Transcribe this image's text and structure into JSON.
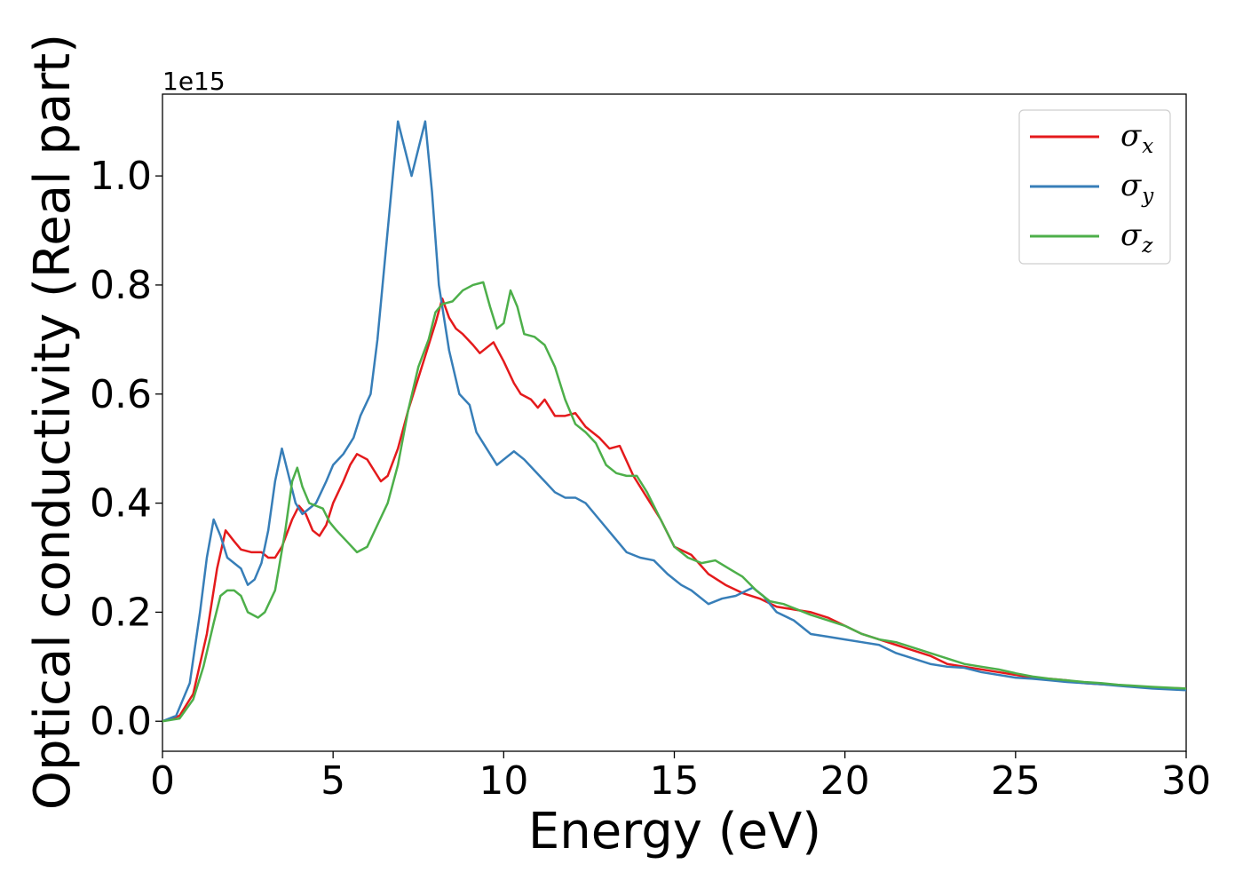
{
  "chart_data": {
    "type": "line",
    "xlabel": "Energy (eV)",
    "ylabel": "Optical conductivity (Real part)",
    "y_offset_text": "1e15",
    "xlim": [
      0,
      30
    ],
    "ylim": [
      -0.055,
      1.15
    ],
    "x_ticks": [
      0,
      5,
      10,
      15,
      20,
      25,
      30
    ],
    "x_tick_labels": [
      "0",
      "5",
      "10",
      "15",
      "20",
      "25",
      "30"
    ],
    "y_ticks": [
      0.0,
      0.2,
      0.4,
      0.6,
      0.8,
      1.0
    ],
    "y_tick_labels": [
      "0.0",
      "0.2",
      "0.4",
      "0.6",
      "0.8",
      "1.0"
    ],
    "grid": false,
    "legend_position": "top-right",
    "series": [
      {
        "name": "σx",
        "symbol": "σ",
        "subscript": "x",
        "color": "#e41a1c",
        "points": [
          [
            0,
            0
          ],
          [
            0.5,
            0.01
          ],
          [
            0.9,
            0.05
          ],
          [
            1.3,
            0.16
          ],
          [
            1.6,
            0.28
          ],
          [
            1.85,
            0.35
          ],
          [
            2.1,
            0.33
          ],
          [
            2.3,
            0.315
          ],
          [
            2.6,
            0.31
          ],
          [
            2.9,
            0.31
          ],
          [
            3.1,
            0.3
          ],
          [
            3.3,
            0.3
          ],
          [
            3.5,
            0.32
          ],
          [
            3.8,
            0.37
          ],
          [
            4.0,
            0.395
          ],
          [
            4.2,
            0.38
          ],
          [
            4.4,
            0.35
          ],
          [
            4.6,
            0.34
          ],
          [
            4.8,
            0.36
          ],
          [
            5.0,
            0.4
          ],
          [
            5.3,
            0.44
          ],
          [
            5.5,
            0.47
          ],
          [
            5.7,
            0.49
          ],
          [
            6.0,
            0.48
          ],
          [
            6.2,
            0.46
          ],
          [
            6.4,
            0.44
          ],
          [
            6.6,
            0.45
          ],
          [
            6.9,
            0.5
          ],
          [
            7.2,
            0.57
          ],
          [
            7.5,
            0.63
          ],
          [
            7.8,
            0.69
          ],
          [
            8.0,
            0.73
          ],
          [
            8.2,
            0.775
          ],
          [
            8.4,
            0.74
          ],
          [
            8.6,
            0.72
          ],
          [
            8.8,
            0.71
          ],
          [
            9.1,
            0.69
          ],
          [
            9.3,
            0.675
          ],
          [
            9.5,
            0.685
          ],
          [
            9.7,
            0.695
          ],
          [
            10.0,
            0.66
          ],
          [
            10.3,
            0.62
          ],
          [
            10.5,
            0.6
          ],
          [
            10.8,
            0.59
          ],
          [
            11.0,
            0.575
          ],
          [
            11.2,
            0.59
          ],
          [
            11.5,
            0.56
          ],
          [
            11.8,
            0.56
          ],
          [
            12.1,
            0.565
          ],
          [
            12.4,
            0.54
          ],
          [
            12.8,
            0.52
          ],
          [
            13.1,
            0.5
          ],
          [
            13.4,
            0.505
          ],
          [
            13.8,
            0.45
          ],
          [
            14.2,
            0.41
          ],
          [
            14.6,
            0.37
          ],
          [
            15.0,
            0.32
          ],
          [
            15.5,
            0.305
          ],
          [
            16.0,
            0.27
          ],
          [
            16.5,
            0.25
          ],
          [
            17.0,
            0.235
          ],
          [
            17.5,
            0.225
          ],
          [
            18.0,
            0.21
          ],
          [
            18.5,
            0.205
          ],
          [
            19.0,
            0.2
          ],
          [
            19.5,
            0.19
          ],
          [
            20.0,
            0.175
          ],
          [
            20.5,
            0.16
          ],
          [
            21.0,
            0.15
          ],
          [
            21.5,
            0.14
          ],
          [
            22.0,
            0.13
          ],
          [
            22.5,
            0.12
          ],
          [
            23.0,
            0.105
          ],
          [
            23.5,
            0.1
          ],
          [
            24.0,
            0.095
          ],
          [
            24.5,
            0.09
          ],
          [
            25.0,
            0.085
          ],
          [
            25.5,
            0.08
          ],
          [
            26.0,
            0.078
          ],
          [
            26.5,
            0.075
          ],
          [
            27.0,
            0.07
          ],
          [
            27.5,
            0.068
          ],
          [
            28.0,
            0.066
          ],
          [
            29.0,
            0.062
          ],
          [
            30.0,
            0.06
          ]
        ]
      },
      {
        "name": "σy",
        "symbol": "σ",
        "subscript": "y",
        "color": "#377eb8",
        "points": [
          [
            0,
            0
          ],
          [
            0.4,
            0.01
          ],
          [
            0.8,
            0.07
          ],
          [
            1.1,
            0.2
          ],
          [
            1.3,
            0.3
          ],
          [
            1.5,
            0.37
          ],
          [
            1.7,
            0.34
          ],
          [
            1.9,
            0.3
          ],
          [
            2.1,
            0.29
          ],
          [
            2.3,
            0.28
          ],
          [
            2.5,
            0.25
          ],
          [
            2.7,
            0.26
          ],
          [
            2.9,
            0.29
          ],
          [
            3.1,
            0.35
          ],
          [
            3.3,
            0.44
          ],
          [
            3.5,
            0.5
          ],
          [
            3.7,
            0.45
          ],
          [
            3.9,
            0.4
          ],
          [
            4.1,
            0.38
          ],
          [
            4.3,
            0.39
          ],
          [
            4.5,
            0.4
          ],
          [
            4.8,
            0.44
          ],
          [
            5.0,
            0.47
          ],
          [
            5.3,
            0.49
          ],
          [
            5.6,
            0.52
          ],
          [
            5.8,
            0.56
          ],
          [
            6.1,
            0.6
          ],
          [
            6.3,
            0.7
          ],
          [
            6.6,
            0.9
          ],
          [
            6.9,
            1.1
          ],
          [
            7.1,
            1.05
          ],
          [
            7.3,
            1.0
          ],
          [
            7.5,
            1.05
          ],
          [
            7.7,
            1.1
          ],
          [
            7.9,
            0.97
          ],
          [
            8.1,
            0.8
          ],
          [
            8.4,
            0.68
          ],
          [
            8.7,
            0.6
          ],
          [
            9.0,
            0.58
          ],
          [
            9.2,
            0.53
          ],
          [
            9.5,
            0.5
          ],
          [
            9.8,
            0.47
          ],
          [
            10.0,
            0.48
          ],
          [
            10.3,
            0.495
          ],
          [
            10.6,
            0.48
          ],
          [
            10.9,
            0.46
          ],
          [
            11.2,
            0.44
          ],
          [
            11.5,
            0.42
          ],
          [
            11.8,
            0.41
          ],
          [
            12.1,
            0.41
          ],
          [
            12.4,
            0.4
          ],
          [
            12.8,
            0.37
          ],
          [
            13.2,
            0.34
          ],
          [
            13.6,
            0.31
          ],
          [
            14.0,
            0.3
          ],
          [
            14.4,
            0.295
          ],
          [
            14.8,
            0.27
          ],
          [
            15.2,
            0.25
          ],
          [
            15.5,
            0.24
          ],
          [
            16.0,
            0.215
          ],
          [
            16.4,
            0.225
          ],
          [
            16.8,
            0.23
          ],
          [
            17.3,
            0.245
          ],
          [
            17.6,
            0.23
          ],
          [
            18.0,
            0.2
          ],
          [
            18.5,
            0.185
          ],
          [
            19.0,
            0.16
          ],
          [
            19.5,
            0.155
          ],
          [
            20.0,
            0.15
          ],
          [
            20.5,
            0.145
          ],
          [
            21.0,
            0.14
          ],
          [
            21.5,
            0.125
          ],
          [
            22.0,
            0.115
          ],
          [
            22.5,
            0.105
          ],
          [
            23.0,
            0.1
          ],
          [
            23.5,
            0.098
          ],
          [
            24.0,
            0.09
          ],
          [
            24.5,
            0.085
          ],
          [
            25.0,
            0.08
          ],
          [
            25.5,
            0.078
          ],
          [
            26.0,
            0.075
          ],
          [
            26.5,
            0.072
          ],
          [
            27.0,
            0.07
          ],
          [
            27.5,
            0.068
          ],
          [
            28.0,
            0.065
          ],
          [
            29.0,
            0.06
          ],
          [
            30.0,
            0.057
          ]
        ]
      },
      {
        "name": "σz",
        "symbol": "σ",
        "subscript": "z",
        "color": "#4daf4a",
        "points": [
          [
            0,
            0
          ],
          [
            0.5,
            0.005
          ],
          [
            0.9,
            0.04
          ],
          [
            1.2,
            0.1
          ],
          [
            1.5,
            0.18
          ],
          [
            1.7,
            0.23
          ],
          [
            1.9,
            0.24
          ],
          [
            2.1,
            0.24
          ],
          [
            2.3,
            0.23
          ],
          [
            2.5,
            0.2
          ],
          [
            2.8,
            0.19
          ],
          [
            3.0,
            0.2
          ],
          [
            3.3,
            0.24
          ],
          [
            3.6,
            0.35
          ],
          [
            3.8,
            0.44
          ],
          [
            3.95,
            0.465
          ],
          [
            4.1,
            0.43
          ],
          [
            4.3,
            0.4
          ],
          [
            4.5,
            0.395
          ],
          [
            4.7,
            0.39
          ],
          [
            4.9,
            0.365
          ],
          [
            5.1,
            0.35
          ],
          [
            5.4,
            0.33
          ],
          [
            5.7,
            0.31
          ],
          [
            6.0,
            0.32
          ],
          [
            6.3,
            0.36
          ],
          [
            6.6,
            0.4
          ],
          [
            6.9,
            0.47
          ],
          [
            7.2,
            0.57
          ],
          [
            7.5,
            0.65
          ],
          [
            7.8,
            0.7
          ],
          [
            8.0,
            0.75
          ],
          [
            8.2,
            0.765
          ],
          [
            8.5,
            0.77
          ],
          [
            8.8,
            0.79
          ],
          [
            9.1,
            0.8
          ],
          [
            9.4,
            0.805
          ],
          [
            9.6,
            0.76
          ],
          [
            9.8,
            0.72
          ],
          [
            10.0,
            0.73
          ],
          [
            10.2,
            0.79
          ],
          [
            10.4,
            0.76
          ],
          [
            10.6,
            0.71
          ],
          [
            10.9,
            0.705
          ],
          [
            11.2,
            0.69
          ],
          [
            11.5,
            0.65
          ],
          [
            11.8,
            0.59
          ],
          [
            12.1,
            0.545
          ],
          [
            12.4,
            0.53
          ],
          [
            12.7,
            0.51
          ],
          [
            13.0,
            0.47
          ],
          [
            13.3,
            0.455
          ],
          [
            13.6,
            0.45
          ],
          [
            13.9,
            0.45
          ],
          [
            14.2,
            0.42
          ],
          [
            14.6,
            0.37
          ],
          [
            15.0,
            0.32
          ],
          [
            15.4,
            0.3
          ],
          [
            15.8,
            0.29
          ],
          [
            16.2,
            0.295
          ],
          [
            16.6,
            0.28
          ],
          [
            17.0,
            0.265
          ],
          [
            17.4,
            0.24
          ],
          [
            17.8,
            0.22
          ],
          [
            18.2,
            0.215
          ],
          [
            18.6,
            0.205
          ],
          [
            19.0,
            0.195
          ],
          [
            19.5,
            0.185
          ],
          [
            20.0,
            0.175
          ],
          [
            20.5,
            0.16
          ],
          [
            21.0,
            0.15
          ],
          [
            21.5,
            0.145
          ],
          [
            22.0,
            0.135
          ],
          [
            22.5,
            0.125
          ],
          [
            23.0,
            0.115
          ],
          [
            23.5,
            0.105
          ],
          [
            24.0,
            0.1
          ],
          [
            24.5,
            0.095
          ],
          [
            25.0,
            0.088
          ],
          [
            25.5,
            0.082
          ],
          [
            26.0,
            0.078
          ],
          [
            26.5,
            0.075
          ],
          [
            27.0,
            0.072
          ],
          [
            27.5,
            0.07
          ],
          [
            28.0,
            0.067
          ],
          [
            29.0,
            0.063
          ],
          [
            30.0,
            0.06
          ]
        ]
      }
    ]
  }
}
